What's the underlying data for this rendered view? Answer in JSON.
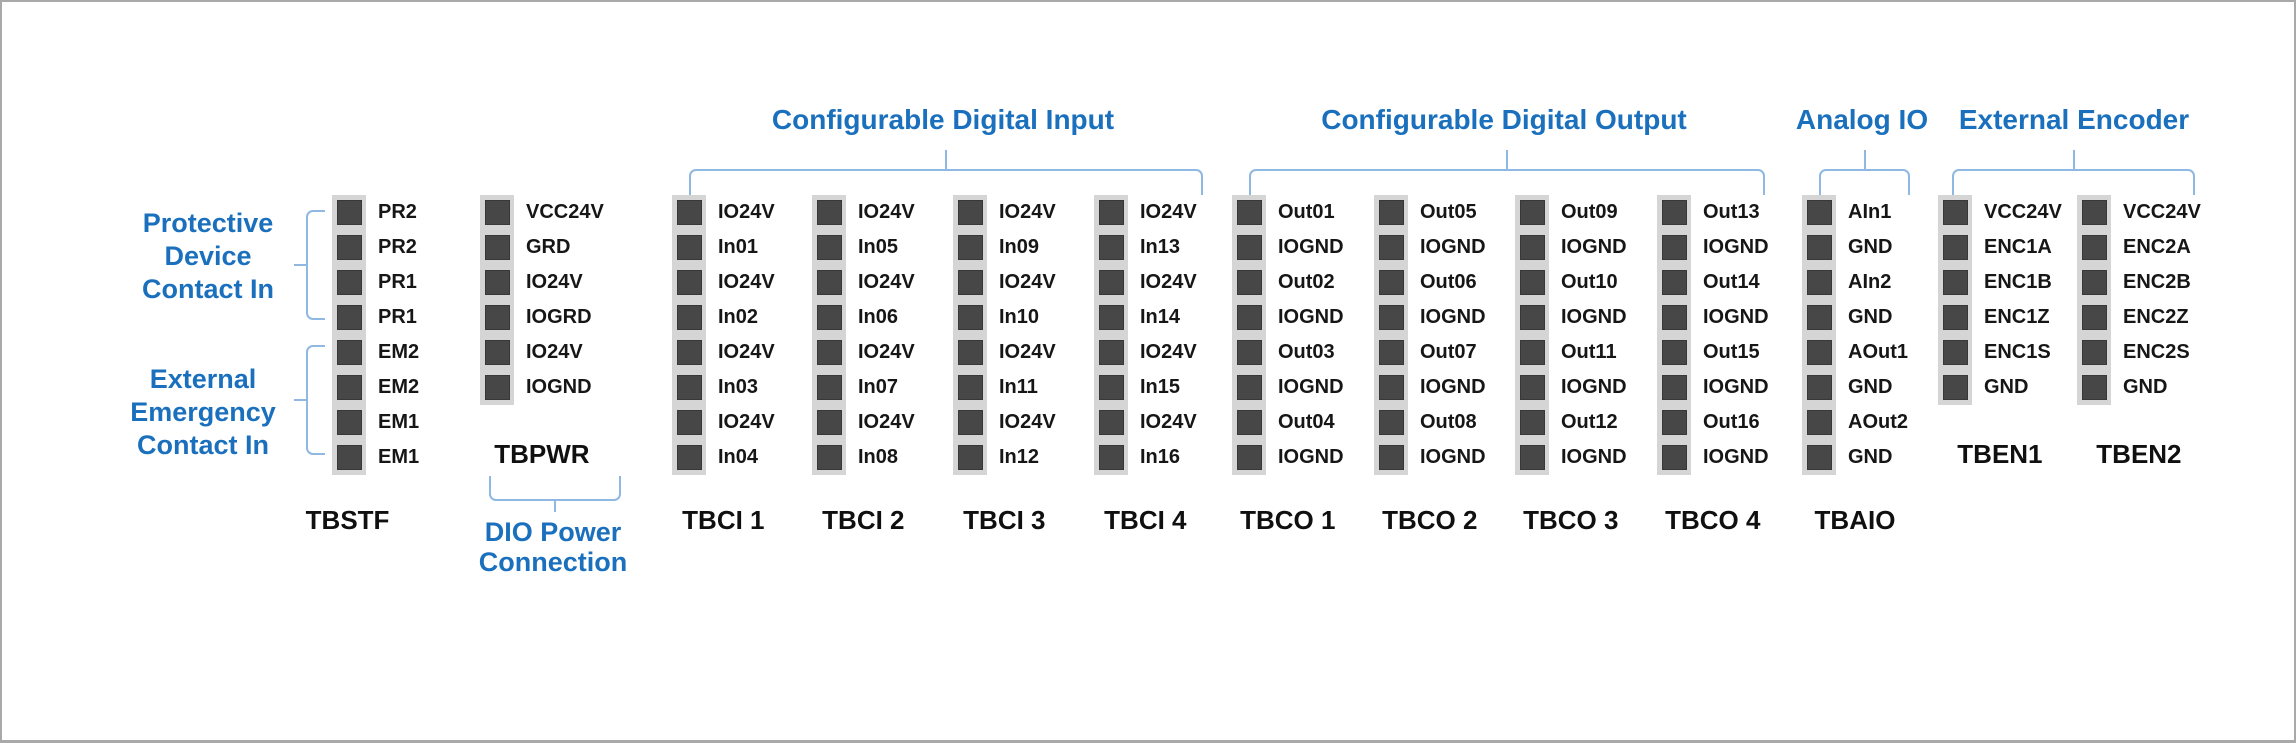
{
  "colors": {
    "header_blue": "#1b70bd",
    "bracket_blue": "#8fb8e2",
    "strip_gray": "#d5d5d5",
    "pin_dark": "#474747",
    "pin_border": "#383838",
    "label_black": "#161616",
    "canvas_border": "#a9a9a9"
  },
  "headers": {
    "digital_input": "Configurable Digital Input",
    "digital_output": "Configurable Digital Output",
    "analog_io": "Analog IO",
    "external_encoder": "External Encoder"
  },
  "annotations": {
    "protective": {
      "lines": [
        "Protective",
        "Device",
        "Contact In"
      ]
    },
    "emergency": {
      "lines": [
        "External",
        "Emergency",
        "Contact In"
      ]
    },
    "dio_power": {
      "lines": [
        "DIO Power",
        "Connection"
      ]
    }
  },
  "blocks": [
    {
      "id": "tbstf",
      "label": "TBSTF",
      "pins": [
        "PR2",
        "PR2",
        "PR1",
        "PR1",
        "EM2",
        "EM2",
        "EM1",
        "EM1"
      ]
    },
    {
      "id": "tbpwr",
      "label": "TBPWR",
      "pins": [
        "VCC24V",
        "GRD",
        "IO24V",
        "IOGRD",
        "IO24V",
        "IOGND"
      ]
    },
    {
      "id": "tbci1",
      "label": "TBCI 1",
      "pins": [
        "IO24V",
        "In01",
        "IO24V",
        "In02",
        "IO24V",
        "In03",
        "IO24V",
        "In04"
      ]
    },
    {
      "id": "tbci2",
      "label": "TBCI 2",
      "pins": [
        "IO24V",
        "In05",
        "IO24V",
        "In06",
        "IO24V",
        "In07",
        "IO24V",
        "In08"
      ]
    },
    {
      "id": "tbci3",
      "label": "TBCI 3",
      "pins": [
        "IO24V",
        "In09",
        "IO24V",
        "In10",
        "IO24V",
        "In11",
        "IO24V",
        "In12"
      ]
    },
    {
      "id": "tbci4",
      "label": "TBCI 4",
      "pins": [
        "IO24V",
        "In13",
        "IO24V",
        "In14",
        "IO24V",
        "In15",
        "IO24V",
        "In16"
      ]
    },
    {
      "id": "tbco1",
      "label": "TBCO 1",
      "pins": [
        "Out01",
        "IOGND",
        "Out02",
        "IOGND",
        "Out03",
        "IOGND",
        "Out04",
        "IOGND"
      ]
    },
    {
      "id": "tbco2",
      "label": "TBCO 2",
      "pins": [
        "Out05",
        "IOGND",
        "Out06",
        "IOGND",
        "Out07",
        "IOGND",
        "Out08",
        "IOGND"
      ]
    },
    {
      "id": "tbco3",
      "label": "TBCO 3",
      "pins": [
        "Out09",
        "IOGND",
        "Out10",
        "IOGND",
        "Out11",
        "IOGND",
        "Out12",
        "IOGND"
      ]
    },
    {
      "id": "tbco4",
      "label": "TBCO 4",
      "pins": [
        "Out13",
        "IOGND",
        "Out14",
        "IOGND",
        "Out15",
        "IOGND",
        "Out16",
        "IOGND"
      ]
    },
    {
      "id": "tbaio",
      "label": "TBAIO",
      "pins": [
        "AIn1",
        "GND",
        "AIn2",
        "GND",
        "AOut1",
        "GND",
        "AOut2",
        "GND"
      ]
    },
    {
      "id": "tben1",
      "label": "TBEN1",
      "pins": [
        "VCC24V",
        "ENC1A",
        "ENC1B",
        "ENC1Z",
        "ENC1S",
        "GND"
      ]
    },
    {
      "id": "tben2",
      "label": "TBEN2",
      "pins": [
        "VCC24V",
        "ENC2A",
        "ENC2B",
        "ENC2Z",
        "ENC2S",
        "GND"
      ]
    }
  ]
}
